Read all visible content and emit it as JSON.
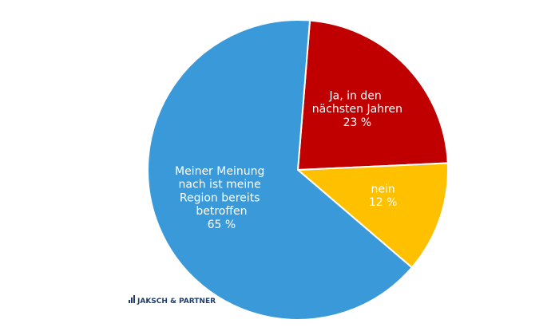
{
  "chart_data": {
    "type": "pie",
    "categories": [
      "Ja, in den nächsten Jahren",
      "nein",
      "Meiner Meinung nach ist meine Region bereits betroffen"
    ],
    "values": [
      23,
      12,
      65
    ],
    "value_labels": [
      "23 %",
      "12 %",
      "65 %"
    ],
    "colors": [
      "#c00000",
      "#ffc000",
      "#3a9ad9"
    ]
  },
  "logo": "JAKSCH & PARTNER"
}
